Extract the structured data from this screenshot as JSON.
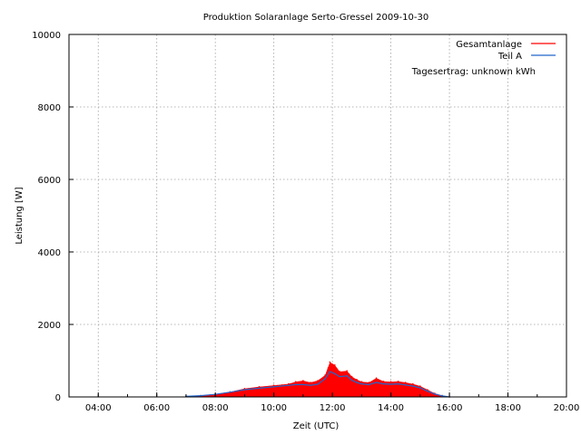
{
  "chart_data": {
    "type": "area",
    "title": "Produktion Solaranlage Serto-Gressel 2009-10-30",
    "xlabel": "Zeit (UTC)",
    "ylabel": "Leistung [W]",
    "xlim": [
      "03:00",
      "20:00"
    ],
    "ylim": [
      0,
      10000
    ],
    "xticks": [
      "04:00",
      "06:00",
      "08:00",
      "10:00",
      "12:00",
      "14:00",
      "16:00",
      "18:00",
      "20:00"
    ],
    "yticks": [
      0,
      2000,
      4000,
      6000,
      8000,
      10000
    ],
    "grid": true,
    "legend_position": "top-right",
    "annotation": "Tagesertrag: unknown kWh",
    "series": [
      {
        "name": "Gesamtanlage",
        "color": "#ff0000",
        "style": "filled spikes",
        "x": [
          "07:00",
          "07:30",
          "08:00",
          "08:30",
          "09:00",
          "09:30",
          "10:00",
          "10:30",
          "10:45",
          "11:00",
          "11:15",
          "11:30",
          "11:45",
          "11:55",
          "12:05",
          "12:15",
          "12:30",
          "12:40",
          "12:50",
          "13:00",
          "13:15",
          "13:30",
          "13:45",
          "14:00",
          "14:15",
          "14:30",
          "14:45",
          "15:00",
          "15:15",
          "15:30",
          "15:45",
          "16:00"
        ],
        "y": [
          20,
          40,
          80,
          140,
          230,
          280,
          320,
          360,
          420,
          450,
          400,
          450,
          600,
          960,
          880,
          700,
          720,
          560,
          480,
          420,
          400,
          520,
          430,
          420,
          430,
          400,
          360,
          300,
          200,
          100,
          40,
          0
        ]
      },
      {
        "name": "Teil A",
        "color": "#2266cc",
        "style": "line",
        "x": [
          "07:00",
          "07:30",
          "08:00",
          "08:30",
          "09:00",
          "09:30",
          "10:00",
          "10:30",
          "10:45",
          "11:00",
          "11:15",
          "11:30",
          "11:45",
          "11:55",
          "12:05",
          "12:15",
          "12:30",
          "12:40",
          "12:50",
          "13:00",
          "13:15",
          "13:30",
          "13:45",
          "14:00",
          "14:15",
          "14:30",
          "14:45",
          "15:00",
          "15:15",
          "15:30",
          "15:45",
          "16:00"
        ],
        "y": [
          15,
          35,
          70,
          130,
          200,
          240,
          280,
          320,
          340,
          340,
          320,
          350,
          500,
          700,
          640,
          560,
          580,
          460,
          400,
          360,
          340,
          400,
          360,
          350,
          360,
          330,
          300,
          250,
          160,
          80,
          30,
          0
        ]
      }
    ]
  }
}
